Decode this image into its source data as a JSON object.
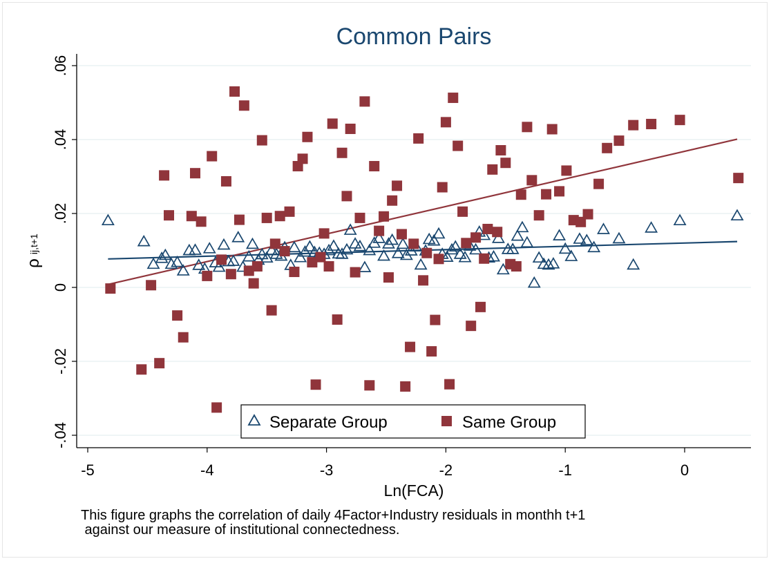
{
  "chart_data": {
    "type": "scatter",
    "title": "Common Pairs",
    "xlabel": "Ln(FCA)",
    "ylabel_main": "ρ",
    "ylabel_sub": "ij,t+1",
    "xlim": [
      -5.0,
      0.56
    ],
    "ylim": [
      -0.043,
      0.064
    ],
    "xticks": [
      {
        "value": -5,
        "label": "-5"
      },
      {
        "value": -4,
        "label": "-4"
      },
      {
        "value": -3,
        "label": "-3"
      },
      {
        "value": -2,
        "label": "-2"
      },
      {
        "value": -1,
        "label": "-1"
      },
      {
        "value": 0,
        "label": "0"
      }
    ],
    "yticks": [
      {
        "value": -0.04,
        "label": "-.04"
      },
      {
        "value": -0.02,
        "label": "-.02"
      },
      {
        "value": 0,
        "label": "0"
      },
      {
        "value": 0.02,
        "label": ".02"
      },
      {
        "value": 0.04,
        "label": ".04"
      },
      {
        "value": 0.06,
        "label": ".06"
      }
    ],
    "grid": true,
    "legend_position": "bottom-center",
    "series": [
      {
        "name": "Separate Group",
        "marker": "hollow-triangle",
        "color": "#1a476f",
        "fit_line": {
          "x": [
            -4.83,
            0.44
          ],
          "y": [
            0.0077,
            0.0124
          ]
        },
        "points": [
          [
            -4.83,
            0.0181
          ],
          [
            -4.53,
            0.0124
          ],
          [
            -4.45,
            0.0063
          ],
          [
            -4.38,
            0.0079
          ],
          [
            -4.35,
            0.0087
          ],
          [
            -4.3,
            0.0063
          ],
          [
            -4.25,
            0.0068
          ],
          [
            -4.2,
            0.0045
          ],
          [
            -4.15,
            0.01
          ],
          [
            -4.1,
            0.0101
          ],
          [
            -4.07,
            0.006
          ],
          [
            -4.02,
            0.005
          ],
          [
            -3.98,
            0.0105
          ],
          [
            -3.93,
            0.0067
          ],
          [
            -3.9,
            0.0055
          ],
          [
            -3.86,
            0.0115
          ],
          [
            -3.82,
            0.007
          ],
          [
            -3.78,
            0.0071
          ],
          [
            -3.74,
            0.0135
          ],
          [
            -3.7,
            0.0055
          ],
          [
            -3.65,
            0.0083
          ],
          [
            -3.62,
            0.0117
          ],
          [
            -3.57,
            0.0074
          ],
          [
            -3.54,
            0.0089
          ],
          [
            -3.5,
            0.008
          ],
          [
            -3.46,
            0.01
          ],
          [
            -3.42,
            0.009
          ],
          [
            -3.38,
            0.0085
          ],
          [
            -3.35,
            0.0108
          ],
          [
            -3.3,
            0.006
          ],
          [
            -3.27,
            0.0108
          ],
          [
            -3.22,
            0.0081
          ],
          [
            -3.18,
            0.0096
          ],
          [
            -3.14,
            0.011
          ],
          [
            -3.1,
            0.0095
          ],
          [
            -3.06,
            0.0093
          ],
          [
            -3.02,
            0.009
          ],
          [
            -2.98,
            0.01
          ],
          [
            -2.94,
            0.0112
          ],
          [
            -2.9,
            0.0091
          ],
          [
            -2.87,
            0.009
          ],
          [
            -2.83,
            0.0102
          ],
          [
            -2.8,
            0.0155
          ],
          [
            -2.76,
            0.0118
          ],
          [
            -2.72,
            0.0111
          ],
          [
            -2.68,
            0.0054
          ],
          [
            -2.64,
            0.01
          ],
          [
            -2.6,
            0.012
          ],
          [
            -2.56,
            0.0133
          ],
          [
            -2.52,
            0.0085
          ],
          [
            -2.48,
            0.0118
          ],
          [
            -2.45,
            0.0128
          ],
          [
            -2.4,
            0.0092
          ],
          [
            -2.36,
            0.0117
          ],
          [
            -2.33,
            0.0087
          ],
          [
            -2.29,
            0.0099
          ],
          [
            -2.25,
            0.011
          ],
          [
            -2.21,
            0.0061
          ],
          [
            -2.17,
            0.0099
          ],
          [
            -2.14,
            0.013
          ],
          [
            -2.1,
            0.0126
          ],
          [
            -2.06,
            0.0145
          ],
          [
            -2.03,
            0.009
          ],
          [
            -1.99,
            0.0082
          ],
          [
            -1.95,
            0.0102
          ],
          [
            -1.92,
            0.011
          ],
          [
            -1.88,
            0.009
          ],
          [
            -1.84,
            0.0081
          ],
          [
            -1.8,
            0.0112
          ],
          [
            -1.75,
            0.0102
          ],
          [
            -1.72,
            0.015
          ],
          [
            -1.68,
            0.0141
          ],
          [
            -1.64,
            0.008
          ],
          [
            -1.6,
            0.0083
          ],
          [
            -1.56,
            0.0133
          ],
          [
            -1.52,
            0.0048
          ],
          [
            -1.48,
            0.0103
          ],
          [
            -1.44,
            0.0103
          ],
          [
            -1.4,
            0.0139
          ],
          [
            -1.36,
            0.0162
          ],
          [
            -1.32,
            0.0121
          ],
          [
            -1.26,
            0.0012
          ],
          [
            -1.22,
            0.008
          ],
          [
            -1.18,
            0.0063
          ],
          [
            -1.14,
            0.0061
          ],
          [
            -1.1,
            0.0064
          ],
          [
            -1.05,
            0.014
          ],
          [
            -1.0,
            0.0104
          ],
          [
            -0.95,
            0.0084
          ],
          [
            -0.88,
            0.0131
          ],
          [
            -0.82,
            0.0127
          ],
          [
            -0.76,
            0.0108
          ],
          [
            -0.68,
            0.0157
          ],
          [
            -0.55,
            0.0132
          ],
          [
            -0.43,
            0.0061
          ],
          [
            -0.28,
            0.0161
          ],
          [
            -0.04,
            0.0181
          ],
          [
            0.44,
            0.0194
          ]
        ]
      },
      {
        "name": "Same Group",
        "marker": "filled-square",
        "color": "#90353b",
        "fit_line": {
          "x": [
            -4.83,
            0.44
          ],
          "y": [
            0.0008,
            0.0401
          ]
        },
        "points": [
          [
            -4.81,
            -0.0003
          ],
          [
            -4.55,
            -0.0222
          ],
          [
            -4.47,
            0.0006
          ],
          [
            -4.4,
            -0.0205
          ],
          [
            -4.36,
            0.0303
          ],
          [
            -4.32,
            0.0195
          ],
          [
            -4.25,
            -0.0076
          ],
          [
            -4.2,
            -0.0135
          ],
          [
            -4.13,
            0.0193
          ],
          [
            -4.1,
            0.0309
          ],
          [
            -4.05,
            0.0178
          ],
          [
            -4.0,
            0.0031
          ],
          [
            -3.96,
            0.0355
          ],
          [
            -3.92,
            -0.0325
          ],
          [
            -3.88,
            0.0075
          ],
          [
            -3.84,
            0.0287
          ],
          [
            -3.8,
            0.0036
          ],
          [
            -3.77,
            0.053
          ],
          [
            -3.73,
            0.0183
          ],
          [
            -3.69,
            0.0492
          ],
          [
            -3.65,
            0.0045
          ],
          [
            -3.61,
            0.0011
          ],
          [
            -3.58,
            0.0057
          ],
          [
            -3.54,
            0.0398
          ],
          [
            -3.5,
            0.0188
          ],
          [
            -3.46,
            -0.0062
          ],
          [
            -3.43,
            0.0118
          ],
          [
            -3.39,
            0.0193
          ],
          [
            -3.35,
            0.0098
          ],
          [
            -3.31,
            0.0205
          ],
          [
            -3.27,
            0.0042
          ],
          [
            -3.24,
            0.0328
          ],
          [
            -3.2,
            0.0348
          ],
          [
            -3.16,
            0.0407
          ],
          [
            -3.12,
            0.0068
          ],
          [
            -3.09,
            -0.0263
          ],
          [
            -3.05,
            0.0082
          ],
          [
            -3.02,
            0.0146
          ],
          [
            -2.98,
            0.0057
          ],
          [
            -2.95,
            0.0443
          ],
          [
            -2.91,
            -0.0087
          ],
          [
            -2.87,
            0.0364
          ],
          [
            -2.83,
            0.0247
          ],
          [
            -2.8,
            0.0429
          ],
          [
            -2.76,
            0.0041
          ],
          [
            -2.72,
            0.0188
          ],
          [
            -2.68,
            0.0503
          ],
          [
            -2.64,
            -0.0265
          ],
          [
            -2.6,
            0.0328
          ],
          [
            -2.56,
            0.0153
          ],
          [
            -2.52,
            0.0192
          ],
          [
            -2.48,
            0.0027
          ],
          [
            -2.45,
            0.0235
          ],
          [
            -2.41,
            0.0275
          ],
          [
            -2.37,
            0.0144
          ],
          [
            -2.34,
            -0.0268
          ],
          [
            -2.3,
            -0.0161
          ],
          [
            -2.27,
            0.0118
          ],
          [
            -2.23,
            0.0403
          ],
          [
            -2.19,
            0.0019
          ],
          [
            -2.16,
            0.0093
          ],
          [
            -2.12,
            -0.0173
          ],
          [
            -2.09,
            -0.0088
          ],
          [
            -2.06,
            0.0077
          ],
          [
            -2.03,
            0.0271
          ],
          [
            -2.0,
            0.0447
          ],
          [
            -1.97,
            -0.0262
          ],
          [
            -1.94,
            0.0513
          ],
          [
            -1.9,
            0.0383
          ],
          [
            -1.86,
            0.0205
          ],
          [
            -1.83,
            0.012
          ],
          [
            -1.79,
            -0.0104
          ],
          [
            -1.75,
            0.0135
          ],
          [
            -1.71,
            -0.0053
          ],
          [
            -1.68,
            0.0078
          ],
          [
            -1.65,
            0.0158
          ],
          [
            -1.61,
            0.0319
          ],
          [
            -1.57,
            0.015
          ],
          [
            -1.54,
            0.0371
          ],
          [
            -1.5,
            0.0337
          ],
          [
            -1.46,
            0.0063
          ],
          [
            -1.41,
            0.0057
          ],
          [
            -1.37,
            0.0251
          ],
          [
            -1.32,
            0.0434
          ],
          [
            -1.28,
            0.029
          ],
          [
            -1.22,
            0.0195
          ],
          [
            -1.16,
            0.0252
          ],
          [
            -1.11,
            0.0428
          ],
          [
            -1.05,
            0.026
          ],
          [
            -0.99,
            0.0316
          ],
          [
            -0.93,
            0.0182
          ],
          [
            -0.87,
            0.0177
          ],
          [
            -0.81,
            0.0198
          ],
          [
            -0.72,
            0.028
          ],
          [
            -0.65,
            0.0377
          ],
          [
            -0.55,
            0.0397
          ],
          [
            -0.43,
            0.0439
          ],
          [
            -0.28,
            0.0442
          ],
          [
            -0.04,
            0.0453
          ],
          [
            0.45,
            0.0296
          ]
        ]
      }
    ]
  },
  "caption": {
    "line1": "This figure graphs the correlation of daily 4Factor+Industry residuals in monthh t+1",
    "line2": " against our measure of institutional connectedness."
  }
}
